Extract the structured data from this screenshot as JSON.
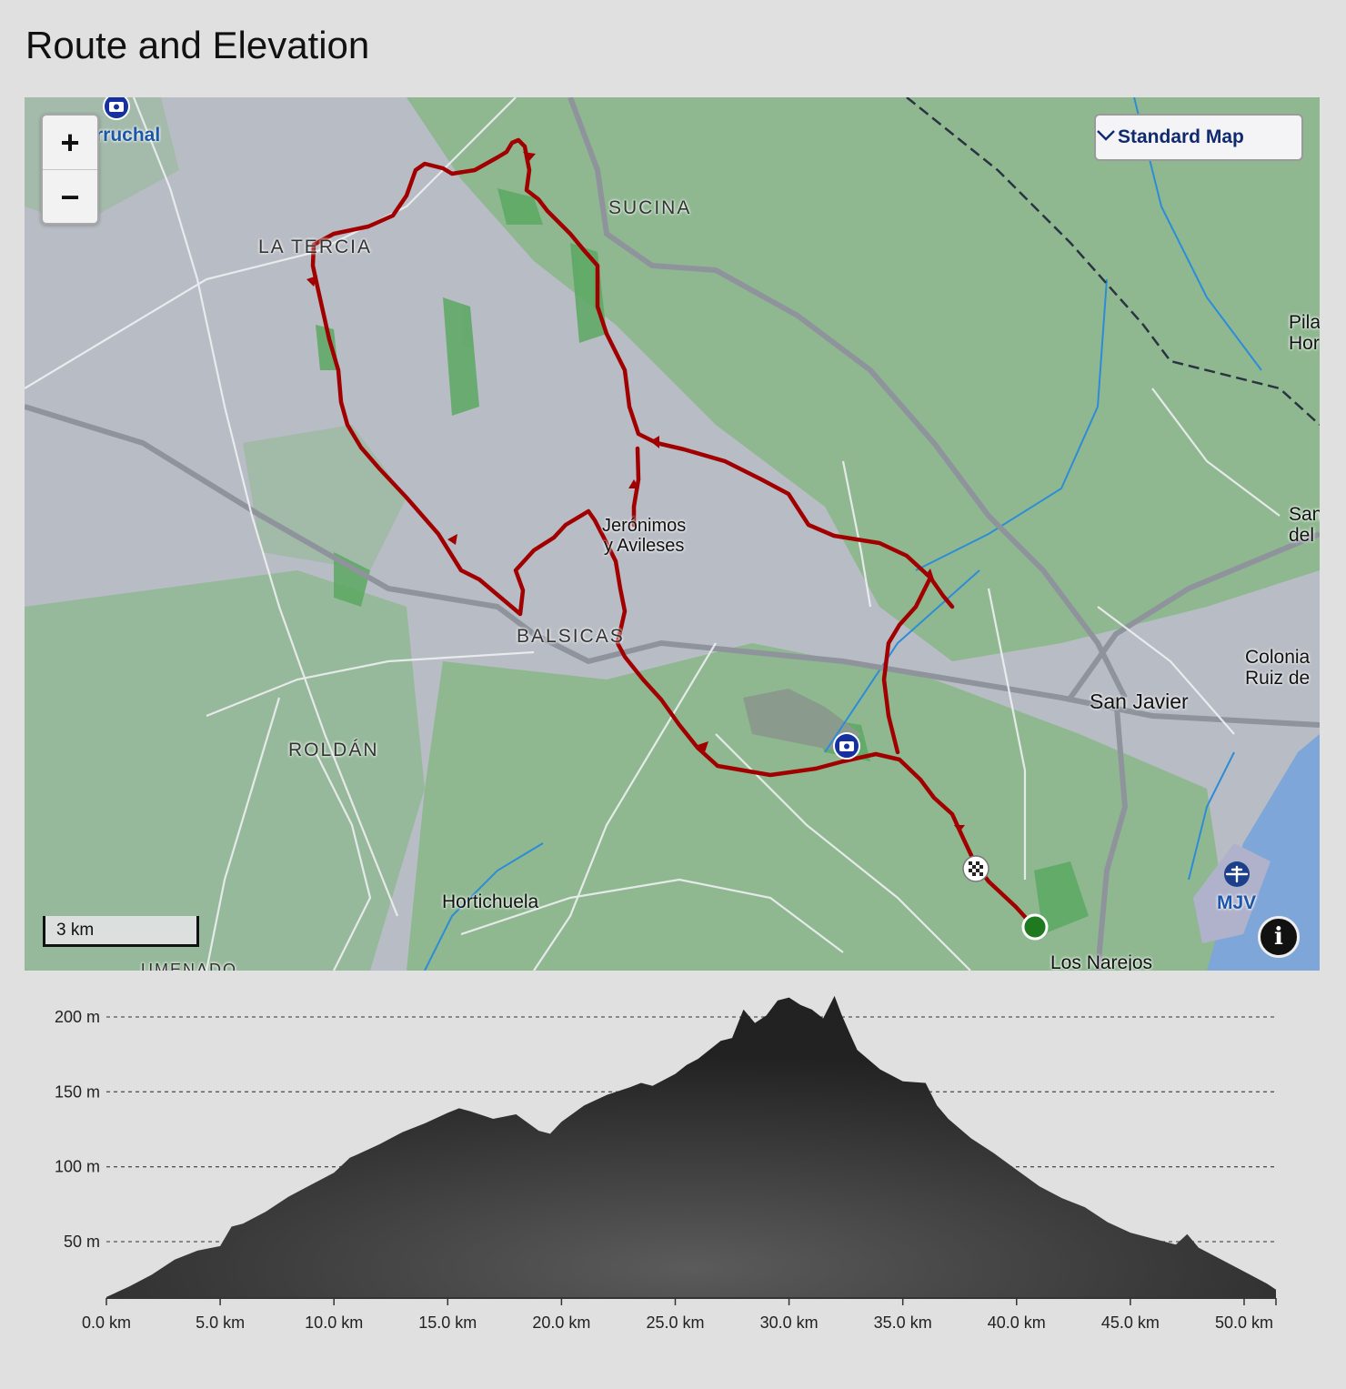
{
  "page": {
    "title": "Route and Elevation"
  },
  "map": {
    "zoom_in_label": "+",
    "zoom_out_label": "−",
    "map_type": {
      "selected": "Standard Map",
      "icon": "chevron-down-icon"
    },
    "scale_label": "3 km",
    "info_icon": "i",
    "places": {
      "carruchal": "rruchal",
      "sucina": "SUCINA",
      "la_tercia": "LA TERCIA",
      "jeronimos": "Jerónimos\ny Avileses",
      "balsicas": "BALSICAS",
      "roldan": "ROLDÁN",
      "hortichuela": "Hortichuela",
      "san_javier": "San Javier",
      "colonia": "Colonia\nRuiz de",
      "pilar": "Pila\nHor",
      "san_del": "San\ndel",
      "mjv": "MJV",
      "los_narejos": "Los Narejos",
      "bottom_cut": "UMENADO"
    },
    "route_color": "#a10000"
  },
  "chart_data": {
    "type": "area",
    "title": "",
    "xlabel": "",
    "ylabel": "",
    "x_unit": "km",
    "y_unit": "m",
    "xlim": [
      0,
      51.4
    ],
    "ylim": [
      12,
      215
    ],
    "x_ticks": [
      "0.0 km",
      "5.0 km",
      "10.0 km",
      "15.0 km",
      "20.0 km",
      "25.0 km",
      "30.0 km",
      "35.0 km",
      "40.0 km",
      "45.0 km",
      "50.0 km"
    ],
    "x_tick_values": [
      0,
      5,
      10,
      15,
      20,
      25,
      30,
      35,
      40,
      45,
      50
    ],
    "y_ticks": [
      "200 m",
      "150 m",
      "100 m",
      "50 m"
    ],
    "y_tick_values": [
      200,
      150,
      100,
      50
    ],
    "grid": true,
    "series": [
      {
        "x": [
          0,
          1,
          2,
          3,
          4,
          5,
          5.5,
          6,
          7,
          8,
          9,
          10,
          10.7,
          11,
          12,
          13,
          14,
          15,
          15.5,
          16,
          17,
          18,
          19,
          19.5,
          20,
          21,
          22,
          23,
          23.5,
          24,
          25,
          25.5,
          26,
          27,
          27.5,
          28,
          28.5,
          29,
          29.5,
          30,
          30.5,
          31,
          31.5,
          32,
          32.3,
          32.7,
          33,
          34,
          35,
          36,
          36.5,
          37,
          38,
          39,
          40,
          41,
          42,
          43,
          44,
          45,
          46,
          47,
          47.5,
          48,
          49,
          50,
          51,
          51.4
        ],
        "y": [
          13,
          20,
          28,
          38,
          44,
          47,
          60,
          62,
          70,
          80,
          88,
          96,
          106,
          108,
          115,
          123,
          129,
          136,
          139,
          137,
          132,
          135,
          124,
          122,
          130,
          141,
          148,
          153,
          156,
          154,
          162,
          168,
          172,
          184,
          186,
          205,
          196,
          201,
          211,
          213,
          208,
          205,
          199,
          214,
          202,
          188,
          178,
          165,
          157,
          156,
          141,
          132,
          119,
          109,
          98,
          87,
          79,
          73,
          63,
          56,
          52,
          48,
          55,
          46,
          38,
          30,
          22,
          18
        ]
      }
    ]
  }
}
